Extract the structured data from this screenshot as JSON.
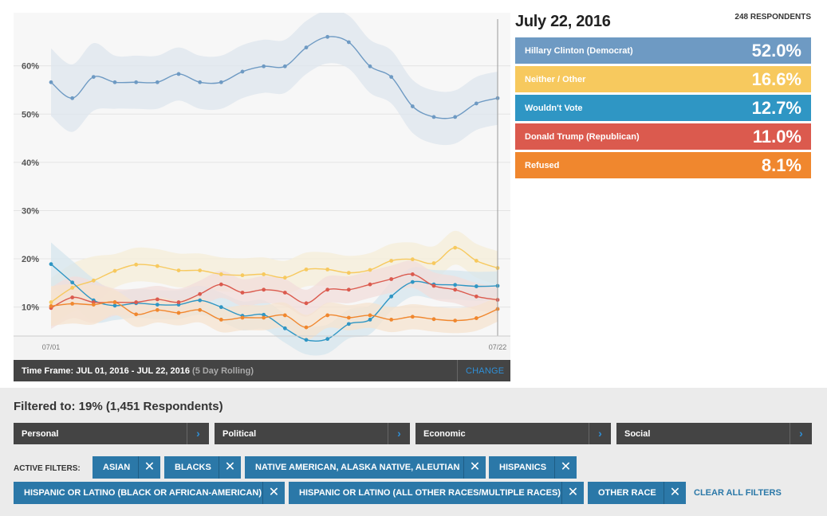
{
  "chart_data": {
    "type": "line",
    "x": [
      "07/01",
      "07/02",
      "07/03",
      "07/04",
      "07/05",
      "07/06",
      "07/07",
      "07/08",
      "07/09",
      "07/10",
      "07/11",
      "07/12",
      "07/13",
      "07/14",
      "07/15",
      "07/16",
      "07/17",
      "07/18",
      "07/19",
      "07/20",
      "07/21",
      "07/22"
    ],
    "x_tick_labels": [
      "07/01",
      "07/22"
    ],
    "y_ticks": [
      "10%",
      "20%",
      "30%",
      "40%",
      "50%",
      "60%"
    ],
    "ylim": [
      4,
      71
    ],
    "series": [
      {
        "name": "Hillary Clinton (Democrat)",
        "color": "#6e9ac3",
        "band_color": "#dde6ee",
        "values": [
          56.6,
          53.3,
          57.7,
          56.6,
          56.6,
          56.6,
          58.3,
          56.6,
          56.6,
          58.8,
          59.9,
          59.9,
          63.8,
          66.0,
          64.9,
          59.9,
          57.7,
          51.6,
          49.4,
          49.4,
          52.2,
          53.3
        ]
      },
      {
        "name": "Neither / Other",
        "color": "#f7c95e",
        "band_color": "#f6eed8",
        "values": [
          11.0,
          14.0,
          15.5,
          17.5,
          18.8,
          18.5,
          17.6,
          17.6,
          16.8,
          16.6,
          16.8,
          16.1,
          17.8,
          17.8,
          17.1,
          17.7,
          19.6,
          19.9,
          19.1,
          22.3,
          19.6,
          18.1
        ]
      },
      {
        "name": "Wouldn't Vote",
        "color": "#2f96c4",
        "band_color": "#d6e6ee",
        "values": [
          18.9,
          15.1,
          11.4,
          10.3,
          10.8,
          10.5,
          10.5,
          11.4,
          10.0,
          8.2,
          8.4,
          5.6,
          3.2,
          3.4,
          6.5,
          7.4,
          12.2,
          15.2,
          14.7,
          14.6,
          14.3,
          14.4
        ]
      },
      {
        "name": "Donald Trump (Republican)",
        "color": "#db5a4e",
        "band_color": "#f1dedb",
        "values": [
          9.8,
          12.0,
          11.0,
          11.0,
          11.0,
          11.6,
          11.0,
          12.7,
          14.7,
          13.0,
          13.6,
          13.0,
          10.8,
          13.6,
          13.6,
          14.7,
          15.8,
          16.8,
          14.4,
          13.6,
          12.2,
          11.5
        ]
      },
      {
        "name": "Refused",
        "color": "#f0872e",
        "band_color": "#f6e3cf",
        "values": [
          10.2,
          10.7,
          10.5,
          11.0,
          8.5,
          9.4,
          8.8,
          9.4,
          7.4,
          7.8,
          7.8,
          8.3,
          5.8,
          8.3,
          7.8,
          8.3,
          7.4,
          8.0,
          7.5,
          7.2,
          7.7,
          9.6
        ]
      }
    ]
  },
  "header": {
    "date": "July 22, 2016",
    "respondents": "248 RESPONDENTS"
  },
  "results": [
    {
      "label": "Hillary Clinton (Democrat)",
      "value": "52.0%",
      "color": "#6e9ac3"
    },
    {
      "label": "Neither / Other",
      "value": "16.6%",
      "color": "#f7c95e"
    },
    {
      "label": "Wouldn't Vote",
      "value": "12.7%",
      "color": "#2f96c4"
    },
    {
      "label": "Donald Trump (Republican)",
      "value": "11.0%",
      "color": "#db5a4e"
    },
    {
      "label": "Refused",
      "value": "8.1%",
      "color": "#f0872e"
    }
  ],
  "timeframe": {
    "label": "Time Frame: JUL 01, 2016 - JUL 22, 2016",
    "note": "(5 Day Rolling)",
    "change": "CHANGE"
  },
  "filters": {
    "summary": "Filtered to: 19% (1,451 Respondents)",
    "categories": [
      "Personal",
      "Political",
      "Economic",
      "Social"
    ],
    "active_label": "ACTIVE FILTERS:",
    "chips": [
      "ASIAN",
      "BLACKS",
      "NATIVE AMERICAN, ALASKA NATIVE, ALEUTIAN",
      "HISPANICS",
      "HISPANIC OR LATINO (BLACK OR AFRICAN-AMERICAN)",
      "HISPANIC OR LATINO (ALL OTHER RACES/MULTIPLE RACES)",
      "OTHER RACE"
    ],
    "clear_all": "CLEAR ALL FILTERS"
  }
}
